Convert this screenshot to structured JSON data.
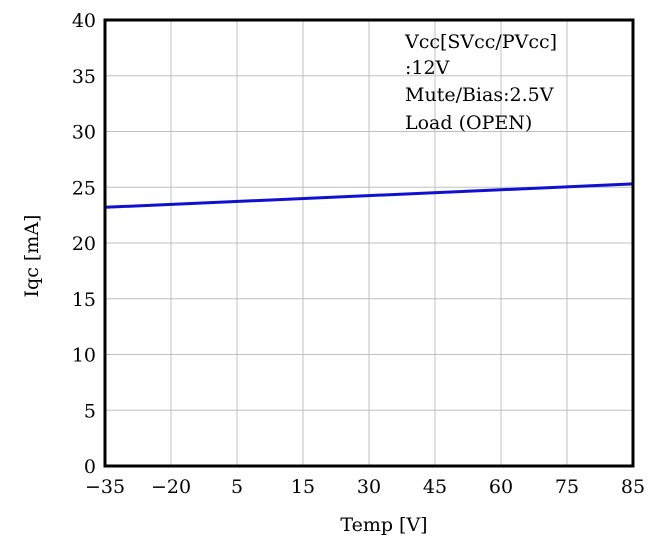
{
  "chart_data": {
    "type": "line",
    "xlabel": "Temp [V]",
    "ylabel": "Iqc [mA]",
    "x_ticks": [
      "−35",
      "−20",
      "5",
      "15",
      "30",
      "45",
      "60",
      "75",
      "85"
    ],
    "y_ticks": [
      "0",
      "5",
      "10",
      "15",
      "20",
      "25",
      "30",
      "35",
      "40"
    ],
    "ylim": [
      0,
      40
    ],
    "grid": true,
    "annotation": [
      "Vcc[SVcc/PVcc]",
      ":12V",
      "Mute/Bias:2.5V",
      "Load (OPEN)"
    ],
    "series": [
      {
        "x": [
          -35,
          85
        ],
        "y": [
          23.2,
          25.3
        ],
        "color": "#1010d0"
      }
    ]
  }
}
